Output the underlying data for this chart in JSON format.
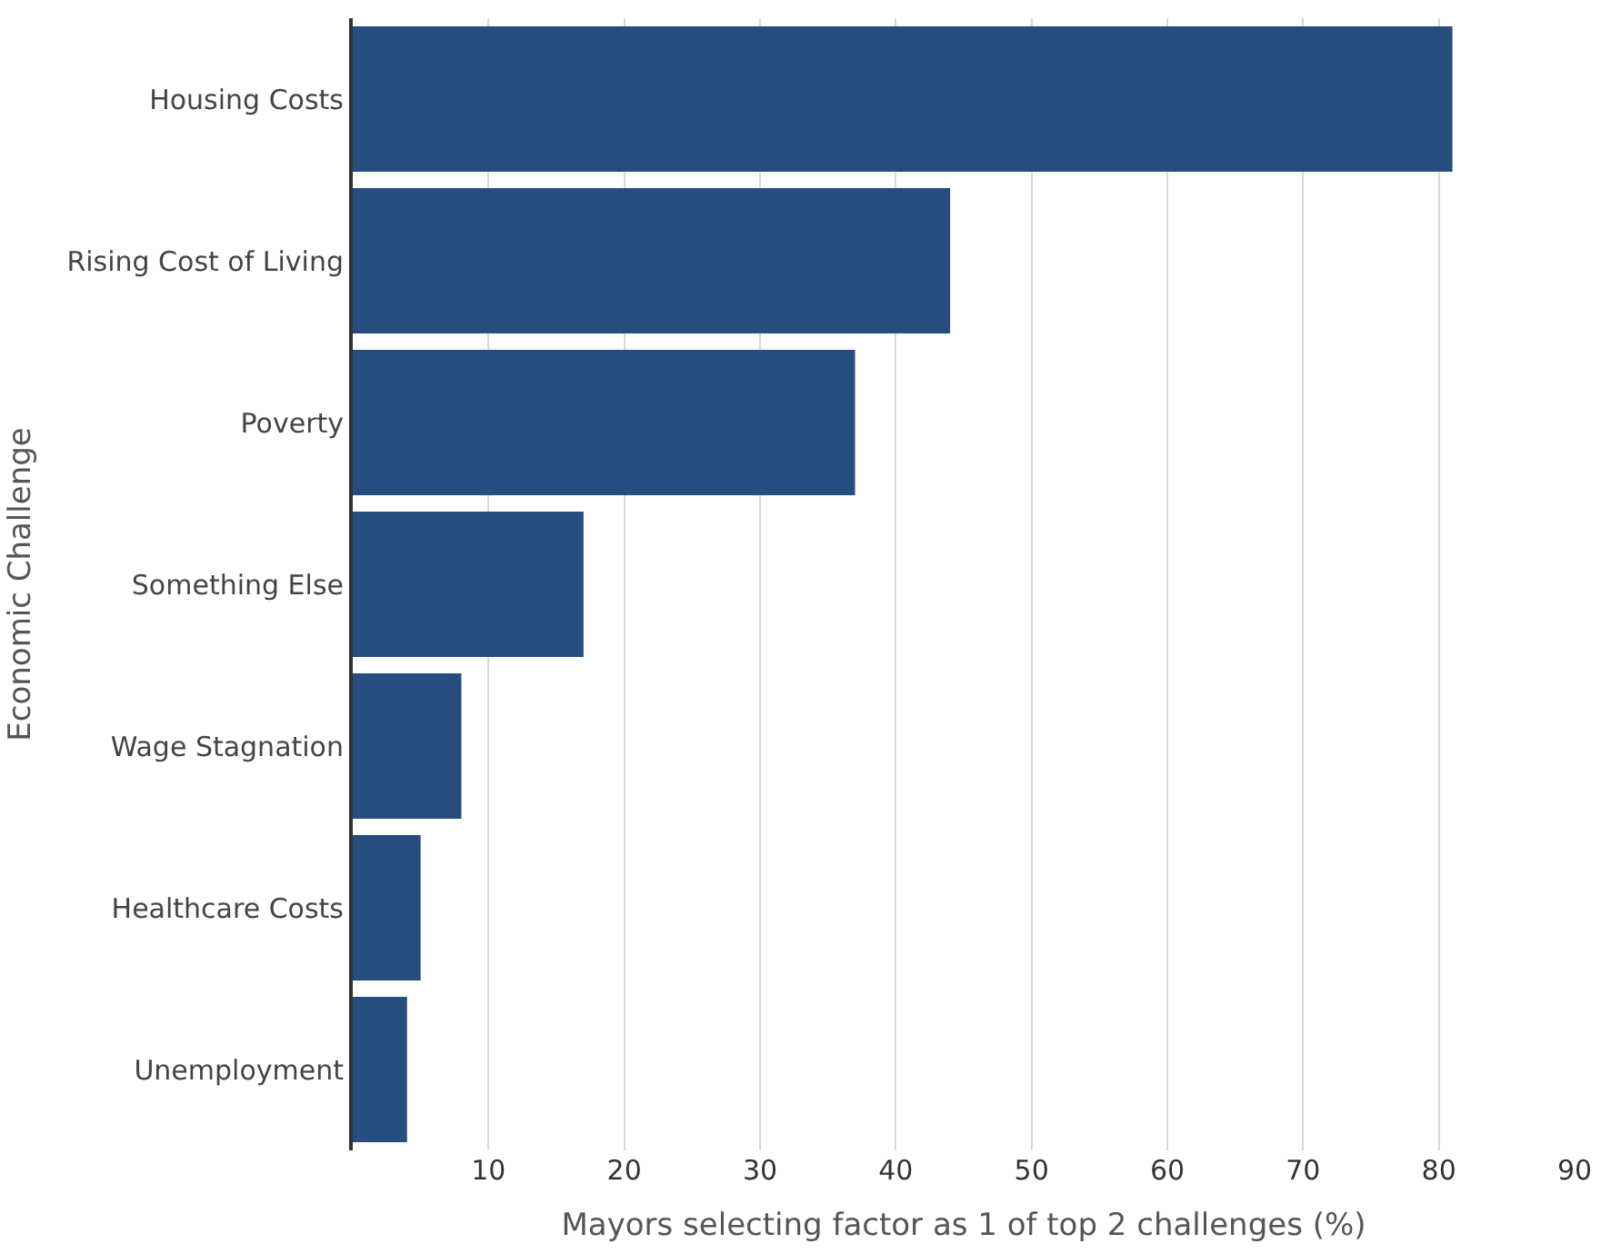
{
  "chart_data": {
    "type": "bar",
    "orientation": "horizontal",
    "xlabel": "Mayors selecting factor as 1 of top 2 challenges (%)",
    "ylabel": "Economic Challenge",
    "categories": [
      "Housing Costs",
      "Rising Cost of Living",
      "Poverty",
      "Something Else",
      "Wage Stagnation",
      "Healthcare Costs",
      "Unemployment"
    ],
    "values": [
      81,
      44,
      37,
      17,
      8,
      5,
      4
    ],
    "color": "#254e7f",
    "xlim": [
      0,
      90
    ],
    "xticks": [
      10,
      20,
      30,
      40,
      50,
      60,
      70,
      80,
      90
    ],
    "grid": "x",
    "legend": false
  }
}
